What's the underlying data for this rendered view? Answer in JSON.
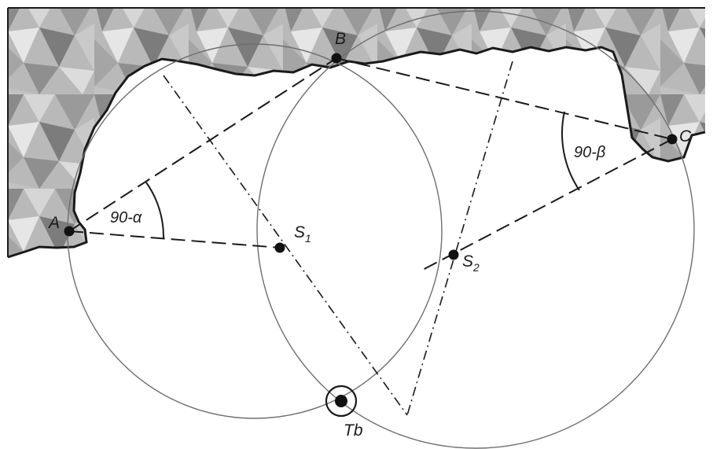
{
  "figure": {
    "points": {
      "A": "A",
      "B": "B",
      "C": "C",
      "S1": {
        "base": "S",
        "sub": "1"
      },
      "S2": {
        "base": "S",
        "sub": "2"
      },
      "Tb": "Tb"
    },
    "angles": {
      "alpha": "90-α",
      "beta": "90-β"
    }
  }
}
